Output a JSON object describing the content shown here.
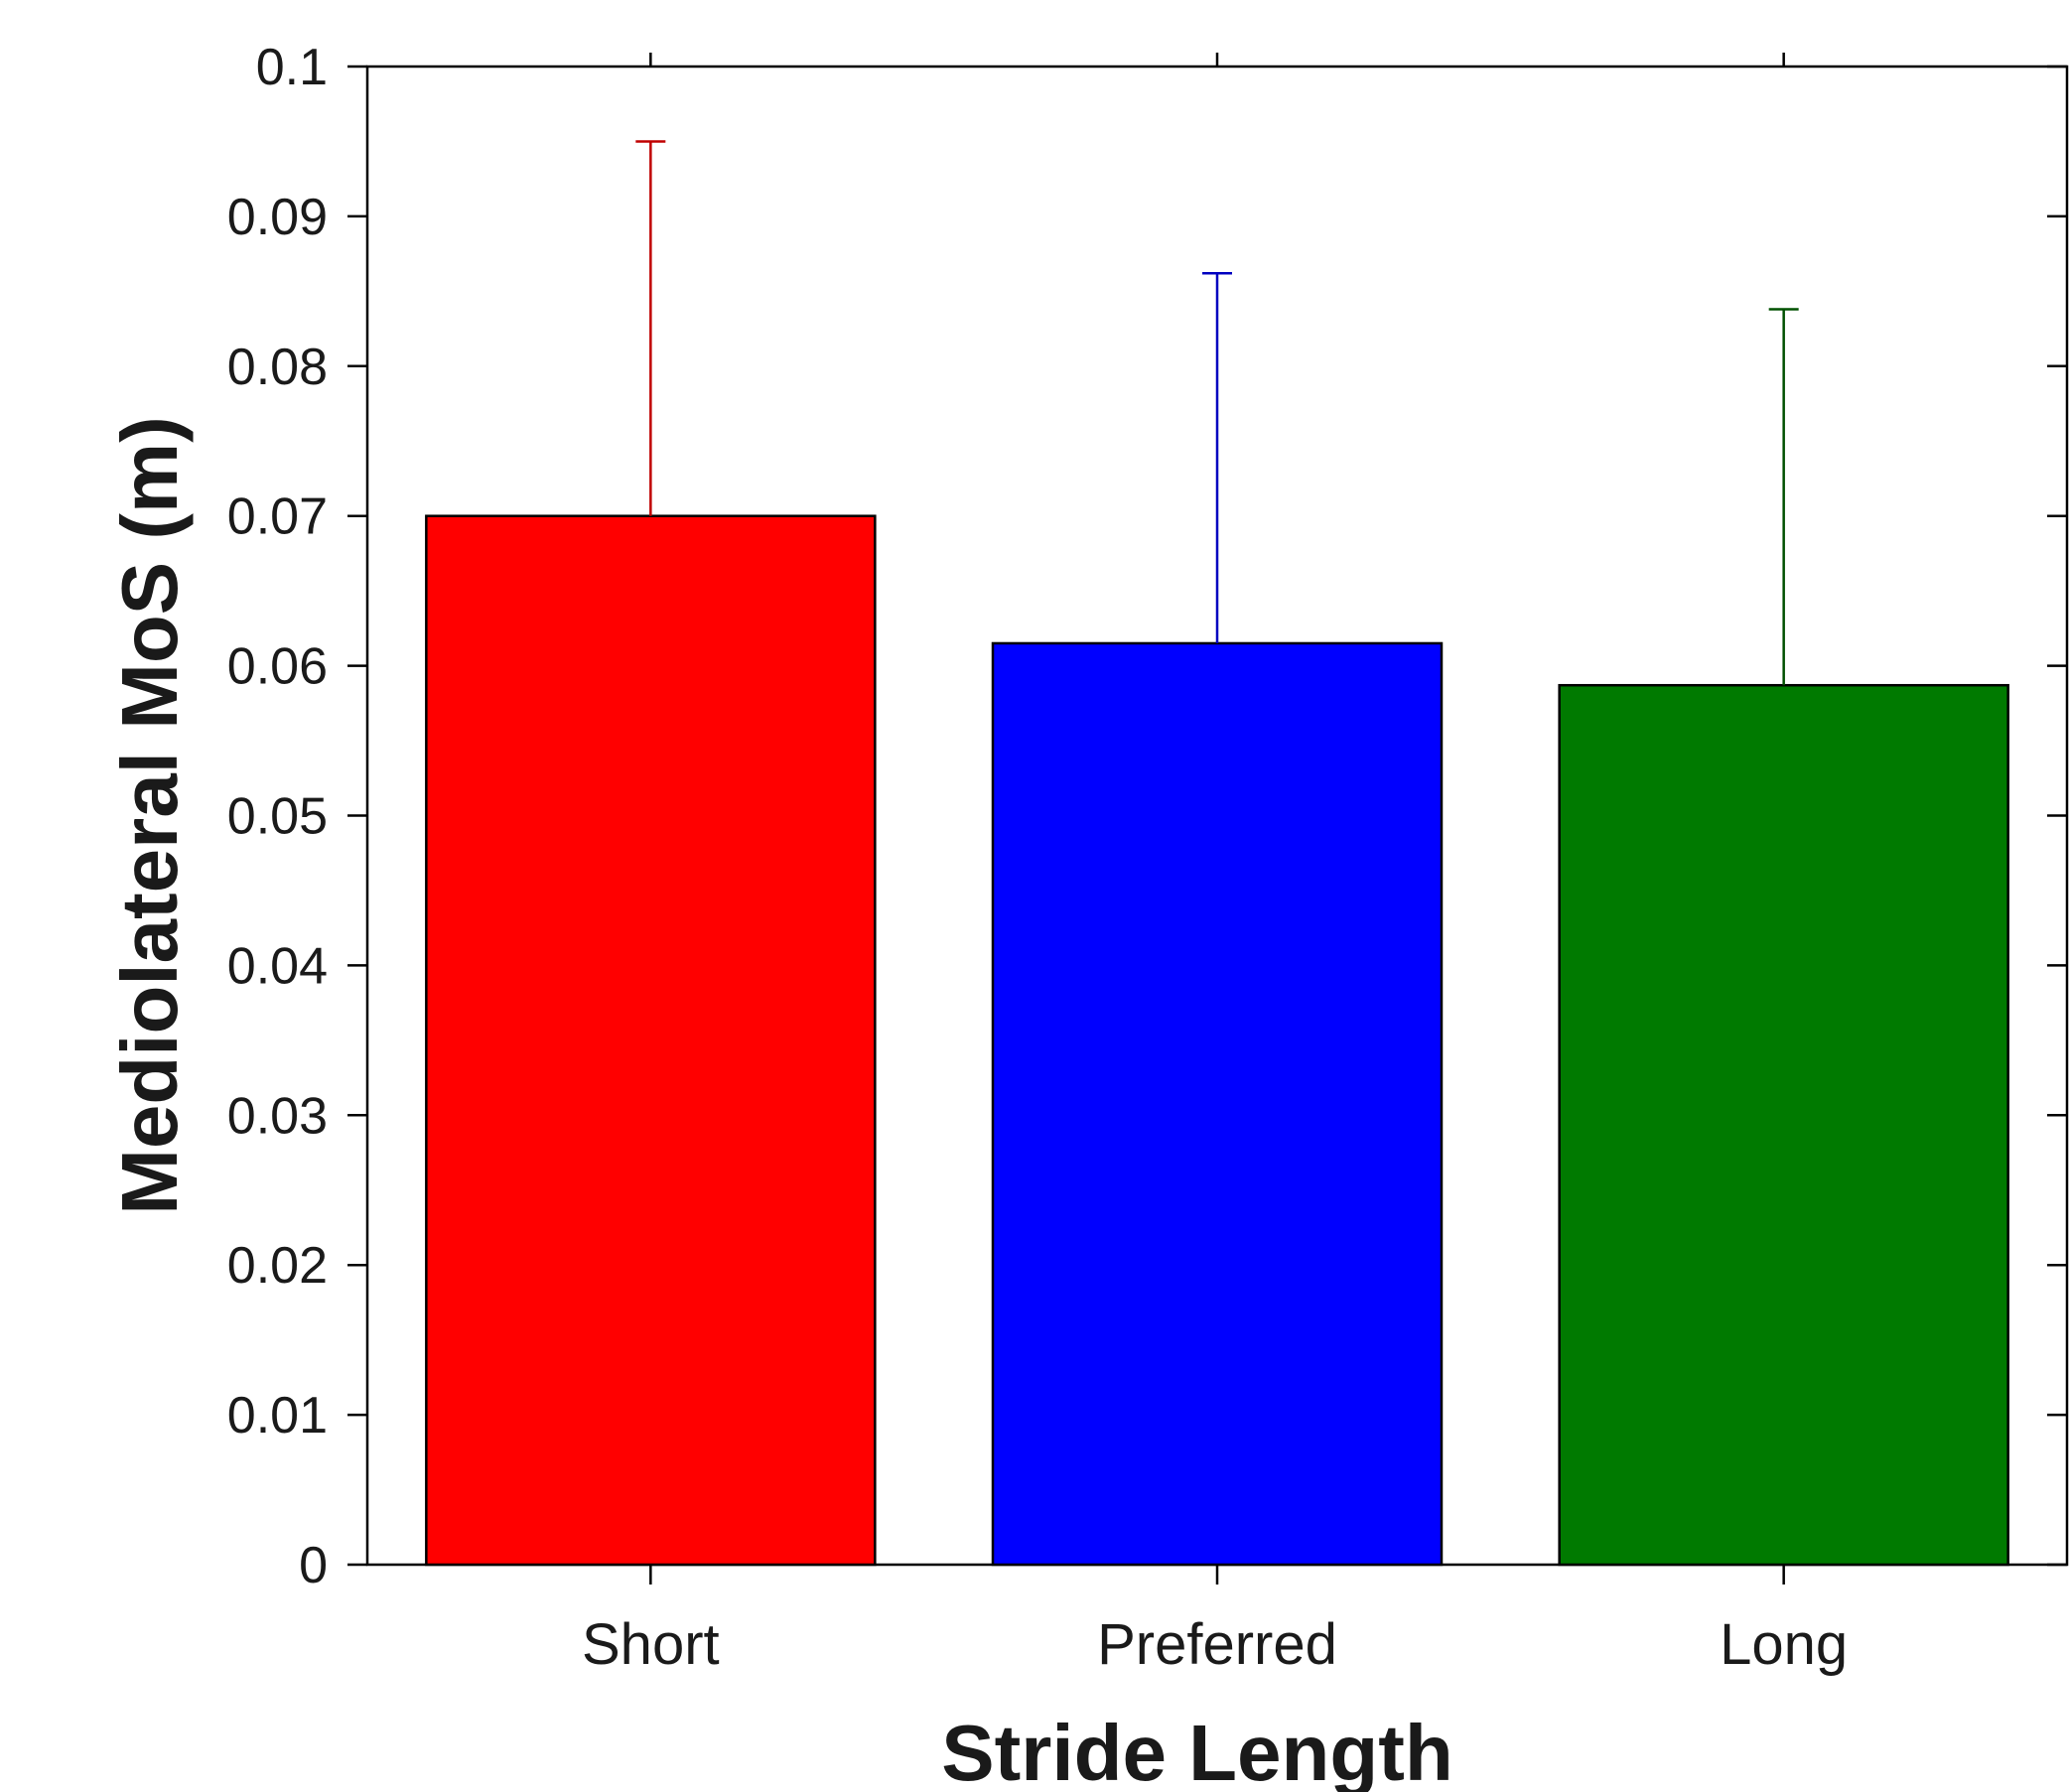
{
  "chart_data": {
    "type": "bar",
    "title": "",
    "xlabel": "Stride Length",
    "ylabel": "Mediolateral MoS (m)",
    "categories": [
      "Short",
      "Preferred",
      "Long"
    ],
    "values": [
      0.07,
      0.0615,
      0.0587
    ],
    "error_upper": [
      0.095,
      0.0862,
      0.0838
    ],
    "colors": [
      "#ff0000",
      "#0000ff",
      "#007a00"
    ],
    "error_colors": [
      "#c00000",
      "#0000c0",
      "#005000"
    ],
    "ylim": [
      0,
      0.1
    ],
    "yticks": [
      "0",
      "0.01",
      "0.02",
      "0.03",
      "0.04",
      "0.05",
      "0.06",
      "0.07",
      "0.08",
      "0.09",
      "0.1"
    ],
    "grid": false,
    "legend": "none"
  }
}
